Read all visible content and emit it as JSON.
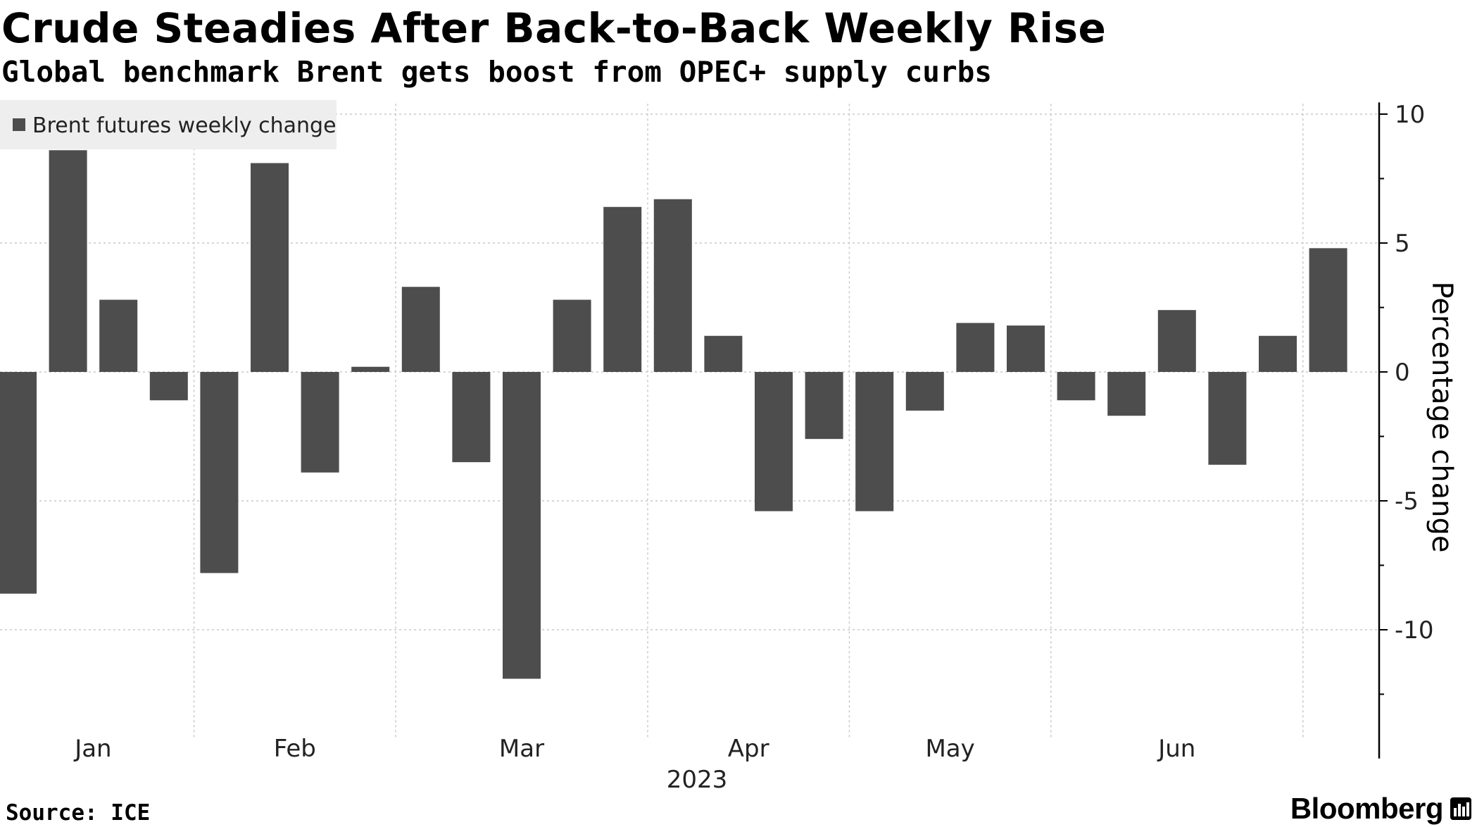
{
  "title": "Crude Steadies After Back-to-Back Weekly Rise",
  "subtitle": "Global benchmark Brent gets boost from OPEC+ supply curbs",
  "source": "Source: ICE",
  "brand": "Bloomberg",
  "colors": {
    "bar": "#4d4d4d",
    "grid": "#c8c8c8",
    "axis": "#000000",
    "legend_bg": "#eeeeee"
  },
  "chart_data": {
    "type": "bar",
    "series": [
      {
        "name": "Brent futures weekly change",
        "x": [
          "2023-01-06",
          "2023-01-13",
          "2023-01-20",
          "2023-01-27",
          "2023-02-03",
          "2023-02-10",
          "2023-02-17",
          "2023-02-24",
          "2023-03-03",
          "2023-03-10",
          "2023-03-17",
          "2023-03-24",
          "2023-03-31",
          "2023-04-06",
          "2023-04-14",
          "2023-04-21",
          "2023-04-28",
          "2023-05-05",
          "2023-05-12",
          "2023-05-19",
          "2023-05-26",
          "2023-06-02",
          "2023-06-09",
          "2023-06-16",
          "2023-06-23",
          "2023-06-30",
          "2023-07-07"
        ],
        "values": [
          -8.6,
          8.6,
          2.8,
          -1.1,
          -7.8,
          8.1,
          -3.9,
          0.2,
          3.3,
          -3.5,
          -11.9,
          2.8,
          6.4,
          6.7,
          1.4,
          -5.4,
          -2.6,
          -5.4,
          -1.5,
          1.9,
          1.8,
          -1.1,
          -1.7,
          2.4,
          -3.6,
          1.4,
          4.8
        ]
      }
    ],
    "legend": "Brent futures weekly change",
    "legend_position": "top-left",
    "x_ticks": [
      "Jan",
      "Feb",
      "Mar",
      "Apr",
      "May",
      "Jun"
    ],
    "x_year_label": "2023",
    "ylabel": "Percentage change",
    "y_ticks": [
      10,
      5,
      0,
      -5,
      -10
    ],
    "y_tick_labels": [
      "10",
      "5",
      "0",
      "-5",
      "-10"
    ],
    "ylim": [
      -13.9,
      10.4
    ],
    "y_axis_side": "right",
    "grid": true
  }
}
